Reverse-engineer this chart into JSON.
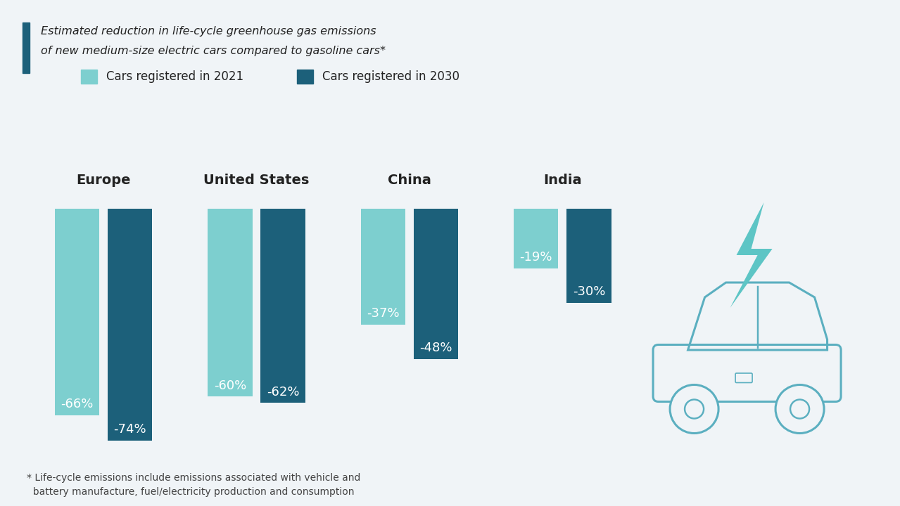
{
  "regions": [
    "Europe",
    "United States",
    "China",
    "India"
  ],
  "values_2021": [
    -66,
    -60,
    -37,
    -19
  ],
  "values_2030": [
    -74,
    -62,
    -48,
    -30
  ],
  "labels_2021": [
    "-66%",
    "-60%",
    "-37%",
    "-19%"
  ],
  "labels_2030": [
    "-74%",
    "-62%",
    "-48%",
    "-30%"
  ],
  "color_2021": "#7DCFCF",
  "color_2030": "#1C607A",
  "background_color": "#F0F4F7",
  "title_line1": "Estimated reduction in life-cycle greenhouse gas emissions",
  "title_line2": "of new medium-size electric cars compared to gasoline cars*",
  "legend_2021": "Cars registered in 2021",
  "legend_2030": "Cars registered in 2030",
  "footnote_line1": "* Life-cycle emissions include emissions associated with vehicle and",
  "footnote_line2": "  battery manufacture, fuel/electricity production and consumption",
  "title_color": "#222222",
  "label_color_white": "#FFFFFF",
  "region_label_fontsize": 14,
  "value_label_fontsize": 13,
  "title_fontsize": 11.5,
  "legend_fontsize": 12,
  "footnote_fontsize": 10,
  "accent_color": "#1C607A",
  "car_color": "#5DC5C5"
}
